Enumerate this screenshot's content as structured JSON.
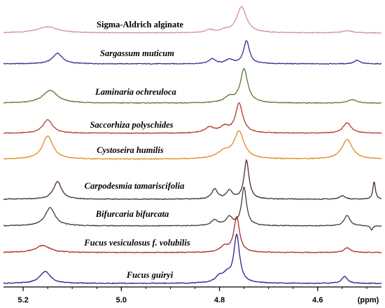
{
  "chart_data": {
    "type": "line",
    "title": "",
    "xlabel": "(ppm)",
    "ylabel": "",
    "x_reversed": true,
    "xlim": [
      5.24,
      4.47
    ],
    "xticks": [
      5.2,
      5.0,
      4.8,
      4.6
    ],
    "tick_labels": [
      "5.2",
      "5.0",
      "4.8",
      "4.6"
    ],
    "grid": false,
    "legend": "none",
    "series": [
      {
        "name": "Sigma-Aldrich alginate",
        "italic": false,
        "color": "#d98e98",
        "peaks": [
          {
            "ppm": 5.15,
            "height": 9,
            "width": 0.025
          },
          {
            "ppm": 4.82,
            "height": 4,
            "width": 0.01
          },
          {
            "ppm": 4.79,
            "height": 3,
            "width": 0.008
          },
          {
            "ppm": 4.755,
            "height": 37,
            "width": 0.012
          },
          {
            "ppm": 4.54,
            "height": 3,
            "width": 0.012
          }
        ]
      },
      {
        "name": "Sargassum muticum",
        "italic": true,
        "color": "#2f2f95",
        "peaks": [
          {
            "ppm": 5.13,
            "height": 15,
            "width": 0.012
          },
          {
            "ppm": 4.815,
            "height": 7,
            "width": 0.008
          },
          {
            "ppm": 4.78,
            "height": 6,
            "width": 0.008
          },
          {
            "ppm": 4.745,
            "height": 33,
            "width": 0.007
          },
          {
            "ppm": 4.52,
            "height": 5,
            "width": 0.007
          }
        ]
      },
      {
        "name": "Laminaria ochreuloca",
        "italic": true,
        "color": "#557a2c",
        "peaks": [
          {
            "ppm": 5.145,
            "height": 18,
            "width": 0.018
          },
          {
            "ppm": 4.78,
            "height": 8,
            "width": 0.012
          },
          {
            "ppm": 4.75,
            "height": 48,
            "width": 0.009
          },
          {
            "ppm": 4.53,
            "height": 5,
            "width": 0.01
          }
        ]
      },
      {
        "name": "Saccorhiza polyschides",
        "italic": true,
        "color": "#b03a2e",
        "peaks": [
          {
            "ppm": 5.15,
            "height": 19,
            "width": 0.012
          },
          {
            "ppm": 4.82,
            "height": 8,
            "width": 0.012
          },
          {
            "ppm": 4.79,
            "height": 8,
            "width": 0.01
          },
          {
            "ppm": 4.76,
            "height": 42,
            "width": 0.009
          },
          {
            "ppm": 4.54,
            "height": 15,
            "width": 0.01
          }
        ]
      },
      {
        "name": "Cystoseira humilis",
        "italic": true,
        "color": "#e08a1e",
        "peaks": [
          {
            "ppm": 5.15,
            "height": 33,
            "width": 0.013
          },
          {
            "ppm": 4.79,
            "height": 10,
            "width": 0.018
          },
          {
            "ppm": 4.76,
            "height": 38,
            "width": 0.012
          },
          {
            "ppm": 4.54,
            "height": 28,
            "width": 0.013
          }
        ]
      },
      {
        "name": "Carpodesmia tamariscifolia",
        "italic": true,
        "color": "#4a2a3e",
        "peaks": [
          {
            "ppm": 5.13,
            "height": 25,
            "width": 0.01
          },
          {
            "ppm": 4.81,
            "height": 14,
            "width": 0.007
          },
          {
            "ppm": 4.78,
            "height": 12,
            "width": 0.007
          },
          {
            "ppm": 4.745,
            "height": 55,
            "width": 0.006
          },
          {
            "ppm": 4.55,
            "height": 5,
            "width": 0.007
          },
          {
            "ppm": 4.485,
            "height": 25,
            "width": 0.003
          }
        ]
      },
      {
        "name": "Bifurcaria bifurcata",
        "italic": true,
        "color": "#3d3d3d",
        "peaks": [
          {
            "ppm": 5.145,
            "height": 26,
            "width": 0.012
          },
          {
            "ppm": 4.81,
            "height": 8,
            "width": 0.008
          },
          {
            "ppm": 4.78,
            "height": 12,
            "width": 0.008
          },
          {
            "ppm": 4.75,
            "height": 55,
            "width": 0.006
          },
          {
            "ppm": 4.54,
            "height": 15,
            "width": 0.007
          },
          {
            "ppm": 4.49,
            "height": -6,
            "width": 0.003
          }
        ]
      },
      {
        "name": "Fucus vesiculosus f. volubilis",
        "italic": true,
        "color": "#b02a2a",
        "peaks": [
          {
            "ppm": 5.16,
            "height": 10,
            "width": 0.018
          },
          {
            "ppm": 4.79,
            "height": 8,
            "width": 0.01
          },
          {
            "ppm": 4.765,
            "height": 50,
            "width": 0.007
          },
          {
            "ppm": 4.54,
            "height": 7,
            "width": 0.008
          }
        ]
      },
      {
        "name": "Fucus guiryi",
        "italic": true,
        "color": "#23238f",
        "peaks": [
          {
            "ppm": 5.155,
            "height": 17,
            "width": 0.013
          },
          {
            "ppm": 4.8,
            "height": 8,
            "width": 0.01
          },
          {
            "ppm": 4.785,
            "height": 10,
            "width": 0.01
          },
          {
            "ppm": 4.765,
            "height": 68,
            "width": 0.007
          },
          {
            "ppm": 4.545,
            "height": 10,
            "width": 0.007
          }
        ]
      }
    ]
  }
}
